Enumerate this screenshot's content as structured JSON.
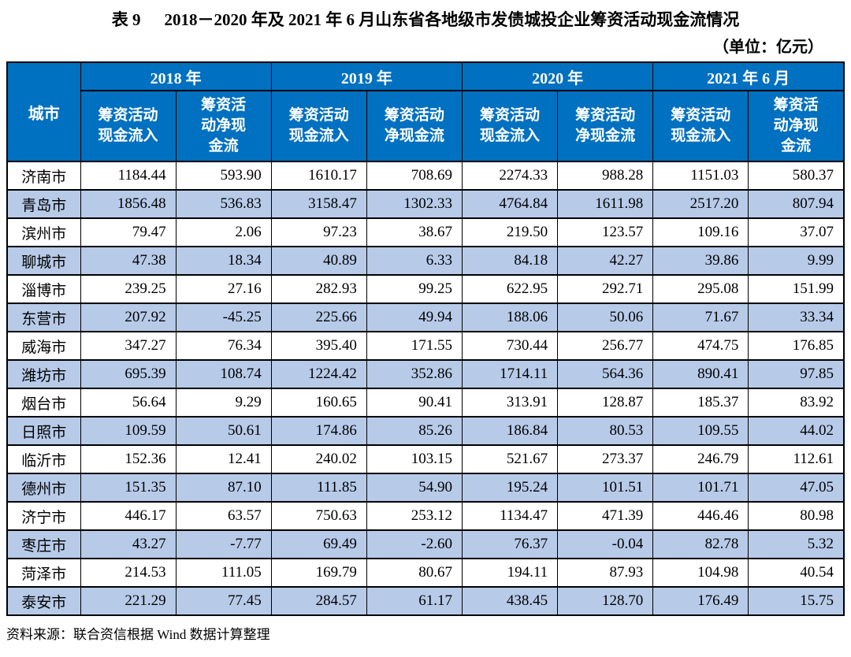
{
  "page": {
    "title_label": "表 9",
    "title_text": "2018－2020 年及 2021 年 6 月山东省各地级市发债城投企业筹资活动现金流情况",
    "unit_note": "（单位：亿元）",
    "source_note": "资料来源：联合资信根据 Wind 数据计算整理"
  },
  "colors": {
    "header_bg": "#0070C0",
    "header_text": "#FFFFFF",
    "row_alt_bg": "#B7CAE8",
    "border": "#000000"
  },
  "chart_data": {
    "type": "table",
    "title": "表 9 2018－2020 年及 2021 年 6 月山东省各地级市发债城投企业筹资活动现金流情况",
    "unit": "亿元",
    "corner_header": "城市",
    "year_groups": [
      {
        "label": "2018 年",
        "columns": [
          "筹资活动现金流入",
          "筹资活动净现金流"
        ]
      },
      {
        "label": "2019 年",
        "columns": [
          "筹资活动现金流入",
          "筹资活动净现金流"
        ]
      },
      {
        "label": "2020 年",
        "columns": [
          "筹资活动现金流入",
          "筹资活动净现金流"
        ]
      },
      {
        "label": "2021 年 6 月",
        "columns": [
          "筹资活动现金流入",
          "筹资活动净现金流"
        ]
      }
    ],
    "sub_header_display": [
      "筹资活动\n现金流入",
      "筹资活\n动净现\n金流",
      "筹资活动\n现金流入",
      "筹资活动\n净现金流",
      "筹资活动\n现金流入",
      "筹资活动\n净现金流",
      "筹资活动\n现金流入",
      "筹资活\n动净现\n金流"
    ],
    "rows": [
      {
        "city": "济南市",
        "values": [
          "1184.44",
          "593.90",
          "1610.17",
          "708.69",
          "2274.33",
          "988.28",
          "1151.03",
          "580.37"
        ]
      },
      {
        "city": "青岛市",
        "values": [
          "1856.48",
          "536.83",
          "3158.47",
          "1302.33",
          "4764.84",
          "1611.98",
          "2517.20",
          "807.94"
        ]
      },
      {
        "city": "滨州市",
        "values": [
          "79.47",
          "2.06",
          "97.23",
          "38.67",
          "219.50",
          "123.57",
          "109.16",
          "37.07"
        ]
      },
      {
        "city": "聊城市",
        "values": [
          "47.38",
          "18.34",
          "40.89",
          "6.33",
          "84.18",
          "42.27",
          "39.86",
          "9.99"
        ]
      },
      {
        "city": "淄博市",
        "values": [
          "239.25",
          "27.16",
          "282.93",
          "99.25",
          "622.95",
          "292.71",
          "295.08",
          "151.99"
        ]
      },
      {
        "city": "东营市",
        "values": [
          "207.92",
          "-45.25",
          "225.66",
          "49.94",
          "188.06",
          "50.06",
          "71.67",
          "33.34"
        ]
      },
      {
        "city": "威海市",
        "values": [
          "347.27",
          "76.34",
          "395.40",
          "171.55",
          "730.44",
          "256.77",
          "474.75",
          "176.85"
        ]
      },
      {
        "city": "潍坊市",
        "values": [
          "695.39",
          "108.74",
          "1224.42",
          "352.86",
          "1714.11",
          "564.36",
          "890.41",
          "97.85"
        ]
      },
      {
        "city": "烟台市",
        "values": [
          "56.64",
          "9.29",
          "160.65",
          "90.41",
          "313.91",
          "128.87",
          "185.37",
          "83.92"
        ]
      },
      {
        "city": "日照市",
        "values": [
          "109.59",
          "50.61",
          "174.86",
          "85.26",
          "186.84",
          "80.53",
          "109.55",
          "44.02"
        ]
      },
      {
        "city": "临沂市",
        "values": [
          "152.36",
          "12.41",
          "240.02",
          "103.15",
          "521.67",
          "273.37",
          "246.79",
          "112.61"
        ]
      },
      {
        "city": "德州市",
        "values": [
          "151.35",
          "87.10",
          "111.85",
          "54.90",
          "195.24",
          "101.51",
          "101.71",
          "47.05"
        ]
      },
      {
        "city": "济宁市",
        "values": [
          "446.17",
          "63.57",
          "750.63",
          "253.12",
          "1134.47",
          "471.39",
          "446.46",
          "80.98"
        ]
      },
      {
        "city": "枣庄市",
        "values": [
          "43.27",
          "-7.77",
          "69.49",
          "-2.60",
          "76.37",
          "-0.04",
          "82.78",
          "5.32"
        ]
      },
      {
        "city": "菏泽市",
        "values": [
          "214.53",
          "111.05",
          "169.79",
          "80.67",
          "194.11",
          "87.93",
          "104.98",
          "40.54"
        ]
      },
      {
        "city": "泰安市",
        "values": [
          "221.29",
          "77.45",
          "284.57",
          "61.17",
          "438.45",
          "128.70",
          "176.49",
          "15.75"
        ]
      }
    ]
  }
}
